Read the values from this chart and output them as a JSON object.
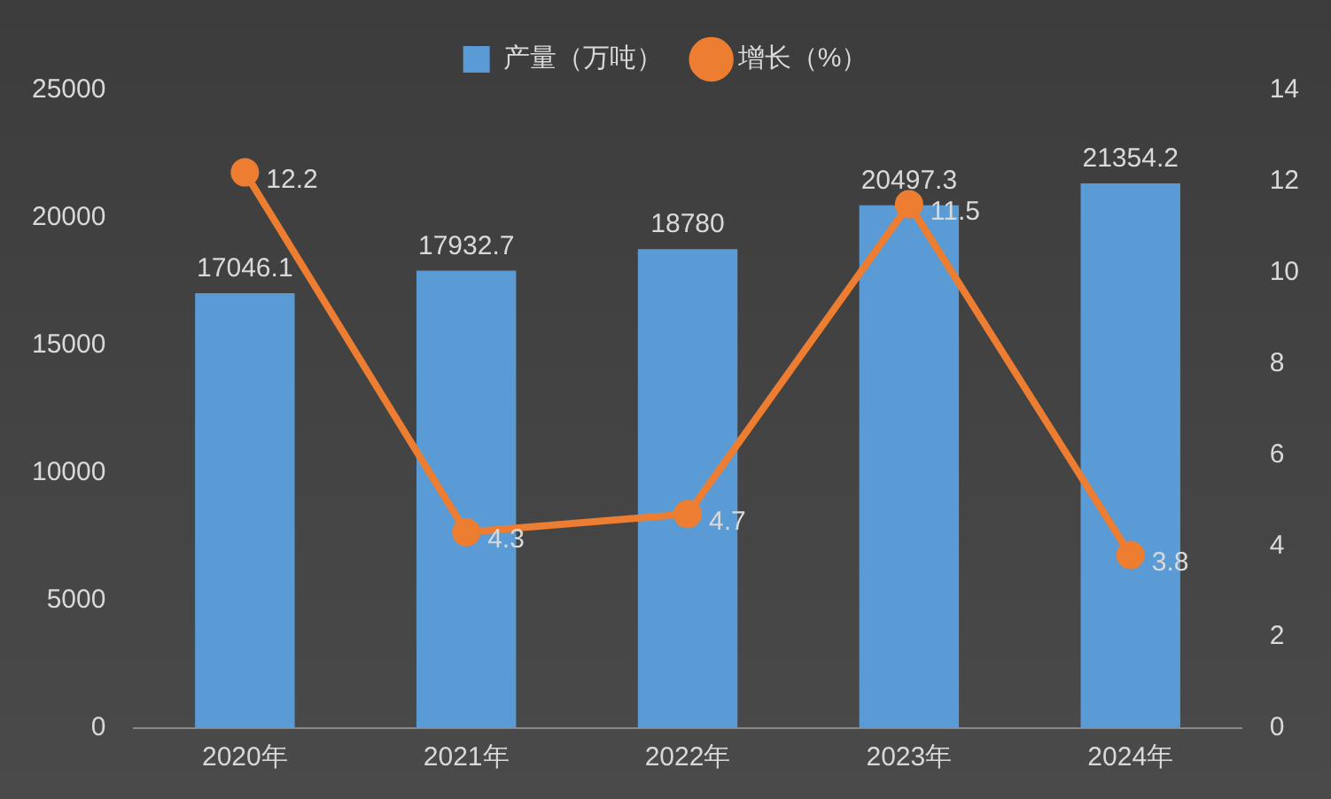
{
  "chart_data": {
    "type": "bar",
    "categories": [
      "2020年",
      "2021年",
      "2022年",
      "2023年",
      "2024年"
    ],
    "series": [
      {
        "name": "产量（万吨）",
        "color": "#5b9bd5",
        "values": [
          17046.1,
          17932.7,
          18780,
          20497.3,
          21354.2
        ]
      },
      {
        "name": "增长（%）",
        "type": "line",
        "axis": "y2",
        "color": "#ed7d31",
        "values": [
          12.2,
          4.3,
          4.7,
          11.5,
          3.8
        ]
      }
    ],
    "ylim": [
      0,
      25000
    ],
    "yticks": [
      0,
      5000,
      10000,
      15000,
      20000,
      25000
    ],
    "y2lim": [
      0,
      14
    ],
    "y2ticks": [
      0,
      2,
      4,
      6,
      8,
      10,
      12,
      14
    ],
    "data_labels": true,
    "legend": "top",
    "grid": false,
    "marker": "circle",
    "line_style": "solid"
  }
}
